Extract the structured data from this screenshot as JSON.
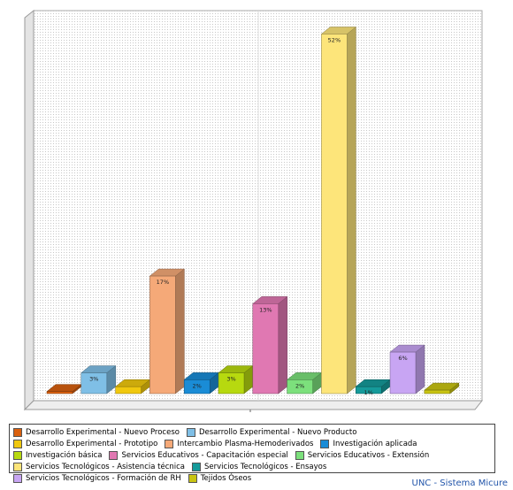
{
  "chart_data": {
    "type": "bar3d",
    "categories": [
      "Desarrollo Experimental - Nuevo Proceso",
      "Desarrollo Experimental - Nuevo Producto",
      "Desarrollo Experimental - Prototipo",
      "Intercambio Plasma-Hemoderivados",
      "Investigación aplicada",
      "Investigación básica",
      "Servicios Educativos - Capacitación especial",
      "Servicios Educativos - Extensión",
      "Servicios Tecnológicos - Asistencia técnica",
      "Servicios Tecnológicos - Ensayos",
      "Servicios Tecnológicos - Formación de RH",
      "Tejidos Óseos"
    ],
    "values": [
      0.3,
      3,
      1,
      17,
      2,
      3,
      13,
      2,
      52,
      1,
      6,
      0.5
    ],
    "value_labels": [
      null,
      "3%",
      null,
      "17%",
      "2%",
      "3%",
      "13%",
      "2%",
      "52%",
      "1%",
      "6%",
      null
    ],
    "colors": [
      "#d9600f",
      "#7fbfe6",
      "#f0c80e",
      "#f5a978",
      "#1a8cd6",
      "#b7d90f",
      "#e078b2",
      "#7ce07c",
      "#fde57a",
      "#159a9a",
      "#c8a5f3",
      "#c9c412"
    ],
    "ylim": [
      0,
      55
    ],
    "footer": "UNC - Sistema Micure"
  }
}
